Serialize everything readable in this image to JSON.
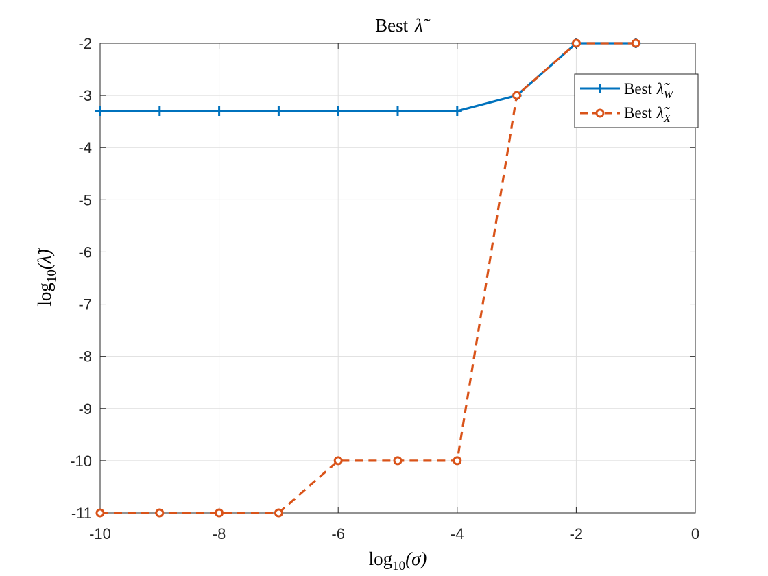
{
  "chart_data": {
    "type": "line",
    "title": "Best λ̃",
    "xlabel": "log10(σ)",
    "ylabel": "log10(λ̃)",
    "xlim": [
      -10,
      0
    ],
    "ylim": [
      -11,
      -2
    ],
    "xticks": [
      "-10",
      "-8",
      "-6",
      "-4",
      "-2",
      "0"
    ],
    "yticks": [
      "-2",
      "-3",
      "-4",
      "-5",
      "-6",
      "-7",
      "-8",
      "-9",
      "-10",
      "-11"
    ],
    "grid": true,
    "legend_position": "top-right",
    "x": [
      -10,
      -9,
      -8,
      -7,
      -6,
      -5,
      -4,
      -3,
      -2,
      -1
    ],
    "series": [
      {
        "name": "Best λ̃W",
        "values": [
          -3.3,
          -3.3,
          -3.3,
          -3.3,
          -3.3,
          -3.3,
          -3.3,
          -3.0,
          -2.0,
          -2.0
        ],
        "color": "#0072BD",
        "line_style": "solid",
        "marker": "plus"
      },
      {
        "name": "Best λ̃X",
        "values": [
          -11,
          -11,
          -11,
          -11,
          -10,
          -10,
          -10,
          -3.0,
          -2.0,
          -2.0
        ],
        "color": "#D95319",
        "line_style": "dashed",
        "marker": "circle"
      }
    ]
  },
  "labels": {
    "title_text": "Best",
    "title_symbol": "λ̃",
    "xlabel_fn": "log",
    "xlabel_sub": "10",
    "xlabel_arg": "(σ)",
    "ylabel_fn": "log",
    "ylabel_sub": "10",
    "ylabel_arg": "(λ̃)",
    "legend_w_text": "Best",
    "legend_w_symbol": "λ̃",
    "legend_w_sub": "W",
    "legend_x_text": "Best",
    "legend_x_symbol": "λ̃",
    "legend_x_sub": "X"
  }
}
